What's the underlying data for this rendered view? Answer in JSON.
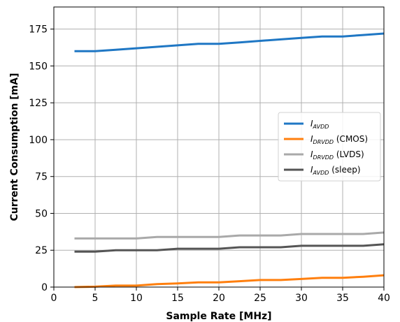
{
  "chart_data": {
    "type": "line",
    "title": "",
    "xlabel": "Sample Rate [MHz]",
    "ylabel": "Current Consumption [mA]",
    "xlim": [
      0,
      40
    ],
    "ylim": [
      0,
      190
    ],
    "xticks": [
      0,
      5,
      10,
      15,
      20,
      25,
      30,
      35,
      40
    ],
    "yticks": [
      0,
      25,
      50,
      75,
      100,
      125,
      150,
      175
    ],
    "grid": true,
    "legend_position": "center-right",
    "x": [
      2.5,
      5,
      7.5,
      10,
      12.5,
      15,
      17.5,
      20,
      22.5,
      25,
      27.5,
      30,
      32.5,
      35,
      37.5,
      40
    ],
    "series": [
      {
        "name_main": "I",
        "name_sub": "AVDD",
        "name_suffix": "",
        "color": "#1f77c4",
        "values": [
          160,
          160,
          161,
          162,
          163,
          164,
          165,
          165,
          166,
          167,
          168,
          169,
          170,
          170,
          171,
          172
        ]
      },
      {
        "name_main": "I",
        "name_sub": "DRVDD",
        "name_suffix": " (CMOS)",
        "color": "#ff7f0e",
        "values": [
          0,
          0.3,
          1,
          1,
          2,
          2.5,
          3.2,
          3.2,
          4,
          4.8,
          4.8,
          5.5,
          6.3,
          6.3,
          7,
          8
        ]
      },
      {
        "name_main": "I",
        "name_sub": "DRVDD",
        "name_suffix": " (LVDS)",
        "color": "#a9a9a9",
        "values": [
          33,
          33,
          33,
          33,
          34,
          34,
          34,
          34,
          35,
          35,
          35,
          36,
          36,
          36,
          36,
          37
        ]
      },
      {
        "name_main": "I",
        "name_sub": "AVDD",
        "name_suffix": " (sleep)",
        "color": "#555555",
        "values": [
          24,
          24,
          25,
          25,
          25,
          26,
          26,
          26,
          27,
          27,
          27,
          28,
          28,
          28,
          28,
          29
        ]
      }
    ]
  }
}
